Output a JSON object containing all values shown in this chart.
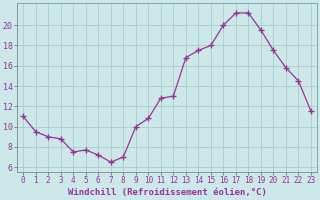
{
  "hours": [
    0,
    1,
    2,
    3,
    4,
    5,
    6,
    7,
    8,
    9,
    10,
    11,
    12,
    13,
    14,
    15,
    16,
    17,
    18,
    19,
    20,
    21,
    22,
    23
  ],
  "values": [
    11.0,
    9.5,
    9.0,
    8.8,
    7.5,
    7.7,
    7.2,
    6.5,
    7.0,
    10.0,
    10.8,
    12.8,
    13.0,
    16.8,
    17.5,
    18.0,
    20.0,
    21.2,
    21.2,
    19.5,
    17.5,
    15.8,
    14.5,
    11.5
  ],
  "line_color": "#993399",
  "marker": "+",
  "marker_size": 4,
  "bg_color": "#cce8e8",
  "grid_color": "#aacccc",
  "xlabel": "Windchill (Refroidissement éolien,°C)",
  "xlabel_color": "#993399",
  "yticks": [
    6,
    8,
    10,
    12,
    14,
    16,
    18,
    20
  ],
  "ylim": [
    5.5,
    22.2
  ],
  "xlim": [
    -0.5,
    23.5
  ],
  "tick_label_color": "#993399",
  "xtick_fontsize": 5.5,
  "ytick_fontsize": 6.0,
  "xlabel_fontsize": 6.5
}
